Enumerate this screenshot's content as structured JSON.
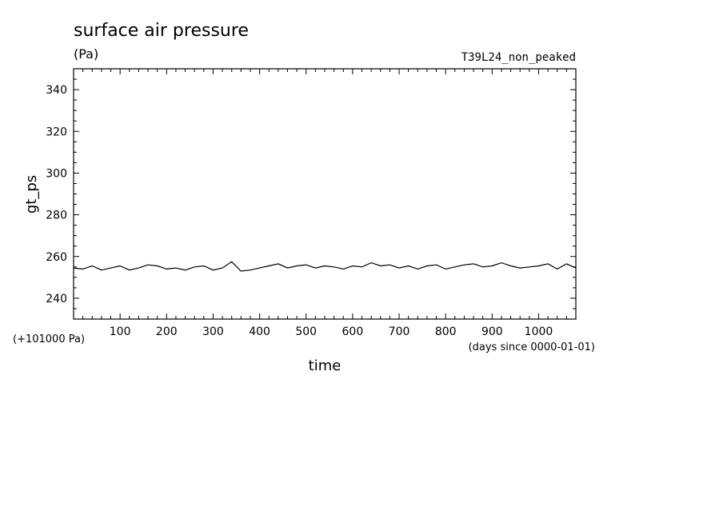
{
  "chart_data": {
    "type": "line",
    "title": "surface air pressure",
    "units": "(Pa)",
    "run_name": "T39L24_non_peaked",
    "xlabel": "time",
    "x_units": "(days since 0000-01-01)",
    "ylabel": "gt_ps",
    "y_offset_label": "(+101000 Pa)",
    "xlim": [
      0,
      1080
    ],
    "ylim": [
      230,
      350
    ],
    "x_ticks": [
      100,
      200,
      300,
      400,
      500,
      600,
      700,
      800,
      900,
      1000
    ],
    "x_tick_labels": [
      "100",
      "200",
      "300",
      "400",
      "500",
      "600",
      "700",
      "800",
      "900",
      "1000"
    ],
    "y_ticks": [
      240,
      260,
      280,
      300,
      320,
      340
    ],
    "y_tick_labels": [
      "240",
      "260",
      "280",
      "300",
      "320",
      "340"
    ],
    "grid": false,
    "line_color": "#000000",
    "series": [
      {
        "x": [
          0,
          20,
          40,
          60,
          80,
          100,
          120,
          140,
          160,
          180,
          200,
          220,
          240,
          260,
          280,
          300,
          320,
          340,
          360,
          380,
          400,
          420,
          440,
          460,
          480,
          500,
          520,
          540,
          560,
          580,
          600,
          620,
          640,
          660,
          680,
          700,
          720,
          740,
          760,
          780,
          800,
          820,
          840,
          860,
          880,
          900,
          920,
          940,
          960,
          980,
          1000,
          1020,
          1040,
          1060,
          1080
        ],
        "y": [
          254.5,
          254.0,
          255.5,
          253.5,
          254.5,
          255.5,
          253.5,
          254.5,
          256.0,
          255.5,
          254.0,
          254.5,
          253.5,
          255.0,
          255.5,
          253.5,
          254.5,
          257.5,
          253.0,
          253.5,
          254.5,
          255.5,
          256.5,
          254.5,
          255.5,
          256.0,
          254.5,
          255.5,
          255.0,
          254.0,
          255.5,
          255.0,
          257.0,
          255.5,
          256.0,
          254.5,
          255.5,
          254.0,
          255.5,
          256.0,
          254.0,
          255.0,
          256.0,
          256.5,
          255.0,
          255.5,
          257.0,
          255.5,
          254.5,
          255.0,
          255.5,
          256.5,
          254.0,
          256.5,
          254.5
        ]
      }
    ]
  }
}
